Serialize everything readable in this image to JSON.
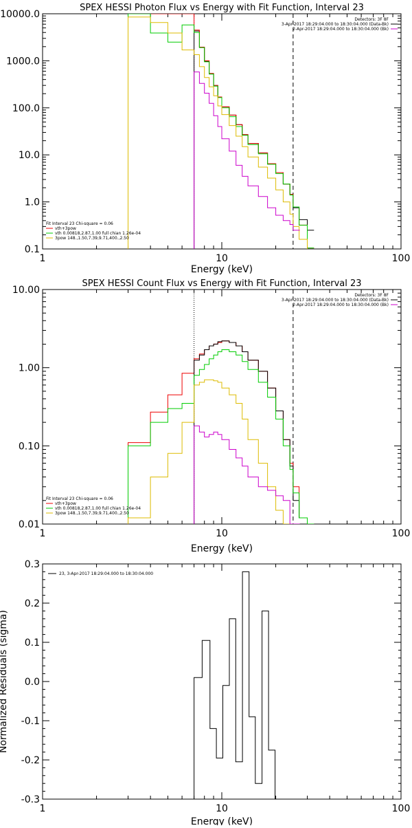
{
  "chart_data": [
    {
      "type": "line",
      "title": "SPEX HESSI Photon Flux vs Energy with Fit Function, Interval 23",
      "xlabel": "Energy (keV)",
      "ylabel": "",
      "xscale": "log",
      "yscale": "log",
      "xlim": [
        1,
        100
      ],
      "ylim": [
        0.1,
        10000
      ],
      "x_ticks": [
        "1",
        "10",
        "100"
      ],
      "y_ticks": [
        "0.1",
        "1.0",
        "10.0",
        "100.0",
        "1000.0",
        "10000.0"
      ],
      "vlines": [
        {
          "x": 7.0,
          "style": "dotted",
          "color": "#cc00cc"
        },
        {
          "x": 25.0,
          "style": "dashed",
          "color": "#000000"
        }
      ],
      "legend_top": {
        "lines": [
          "Detectors: 3F 8F",
          "3-Apr-2017 18:29:04.000 to 18:30:04.000 (Data-Bk)",
          "2-Apr-2017 18:29:04.000 to 18:30:04.000 (Bk)"
        ],
        "colors": [
          "",
          "#000000",
          "#cc00cc"
        ]
      },
      "legend_bottom": {
        "lines": [
          "Fit Interval 23   Chi-square = 0.06",
          "vth+3pow",
          "vth 0.00818,2.87,1.00  full chian 1.26e-04",
          "3pow 148.,1.50,7.39,9.71,400.,2.50"
        ],
        "colors": [
          "",
          "#ee0000",
          "#00cc00",
          "#ddbb00"
        ]
      },
      "series": [
        {
          "color": "#000000",
          "values": [
            [
              7.0,
              4300
            ],
            [
              7.5,
              1950
            ],
            [
              8.0,
              980
            ],
            [
              8.5,
              530
            ],
            [
              9.0,
              300
            ],
            [
              9.5,
              170
            ],
            [
              10.0,
              105
            ],
            [
              11.0,
              70
            ],
            [
              12.0,
              44
            ],
            [
              13.0,
              27
            ],
            [
              14.0,
              17.5
            ],
            [
              16.0,
              11
            ],
            [
              18.0,
              6.5
            ],
            [
              20.0,
              4.2
            ],
            [
              22.0,
              2.4
            ],
            [
              24.0,
              1.45
            ],
            [
              25.0,
              0.75
            ],
            [
              27.0,
              0.42
            ],
            [
              30.0,
              0.25
            ]
          ]
        },
        {
          "color": "#ee0000",
          "values": [
            [
              3.0,
              10000
            ],
            [
              4.0,
              10000
            ],
            [
              5.0,
              10000
            ],
            [
              6.0,
              10000
            ],
            [
              7.0,
              4500
            ],
            [
              7.5,
              1950
            ],
            [
              8.0,
              1000
            ],
            [
              8.5,
              540
            ],
            [
              9.0,
              300
            ],
            [
              9.5,
              170
            ],
            [
              10.0,
              105
            ],
            [
              11.0,
              70
            ],
            [
              12.0,
              44
            ],
            [
              13.0,
              27
            ],
            [
              14.0,
              17.5
            ],
            [
              16.0,
              11
            ],
            [
              18.0,
              6.5
            ],
            [
              20.0,
              4.2
            ],
            [
              22.0,
              2.4
            ],
            [
              24.0,
              1.45
            ],
            [
              25.0,
              0.78
            ],
            [
              27.0,
              0.32
            ],
            [
              30.0,
              0.105
            ]
          ]
        },
        {
          "color": "#00cc00",
          "values": [
            [
              3.0,
              10000
            ],
            [
              4.0,
              3900
            ],
            [
              5.0,
              2500
            ],
            [
              6.0,
              5800
            ],
            [
              7.0,
              4000
            ],
            [
              7.5,
              1900
            ],
            [
              8.0,
              950
            ],
            [
              8.5,
              520
            ],
            [
              9.0,
              290
            ],
            [
              9.5,
              165
            ],
            [
              10.0,
              100
            ],
            [
              11.0,
              65
            ],
            [
              12.0,
              40
            ],
            [
              13.0,
              26
            ],
            [
              14.0,
              16.5
            ],
            [
              16.0,
              10.5
            ],
            [
              18.0,
              6.3
            ],
            [
              20.0,
              4.0
            ],
            [
              22.0,
              2.4
            ],
            [
              24.0,
              1.4
            ],
            [
              25.0,
              0.78
            ],
            [
              27.0,
              0.32
            ],
            [
              30.0,
              0.105
            ]
          ]
        },
        {
          "color": "#ddbb00",
          "values": [
            [
              3.0,
              8500
            ],
            [
              4.0,
              6500
            ],
            [
              5.0,
              3900
            ],
            [
              6.0,
              1700
            ],
            [
              7.0,
              1350
            ],
            [
              7.5,
              750
            ],
            [
              8.0,
              440
            ],
            [
              8.5,
              280
            ],
            [
              9.0,
              180
            ],
            [
              9.5,
              110
            ],
            [
              10.0,
              72
            ],
            [
              11.0,
              42
            ],
            [
              12.0,
              25
            ],
            [
              13.0,
              15
            ],
            [
              14.0,
              9.0
            ],
            [
              16.0,
              5.5
            ],
            [
              18.0,
              3.2
            ],
            [
              20.0,
              1.8
            ],
            [
              22.0,
              1.0
            ],
            [
              24.0,
              0.55
            ],
            [
              25.0,
              0.3
            ],
            [
              27.0,
              0.16
            ],
            [
              30.0,
              0.09
            ]
          ]
        },
        {
          "color": "#cc00cc",
          "values": [
            [
              7.0,
              580
            ],
            [
              7.5,
              330
            ],
            [
              8.0,
              205
            ],
            [
              8.5,
              125
            ],
            [
              9.0,
              68
            ],
            [
              9.5,
              40
            ],
            [
              10.0,
              22
            ],
            [
              11.0,
              12
            ],
            [
              12.0,
              6.0
            ],
            [
              13.0,
              3.5
            ],
            [
              14.0,
              2.2
            ],
            [
              16.0,
              1.3
            ],
            [
              18.0,
              0.75
            ],
            [
              20.0,
              0.52
            ],
            [
              22.0,
              0.4
            ],
            [
              24.0,
              0.33
            ],
            [
              25.0,
              0.25
            ]
          ]
        }
      ]
    },
    {
      "type": "line",
      "title": "SPEX HESSI Count Flux vs Energy with Fit Function, Interval 23",
      "xlabel": "Energy (keV)",
      "ylabel": "",
      "xscale": "log",
      "yscale": "log",
      "xlim": [
        1,
        100
      ],
      "ylim": [
        0.01,
        10
      ],
      "x_ticks": [
        "1",
        "10",
        "100"
      ],
      "y_ticks": [
        "0.01",
        "0.10",
        "1.00",
        "10.00"
      ],
      "vlines": [
        {
          "x": 7.0,
          "style": "dotted",
          "color": "#000000"
        },
        {
          "x": 25.0,
          "style": "dashed",
          "color": "#000000"
        }
      ],
      "legend_top": {
        "lines": [
          "Detectors: 3F 8F",
          "3-Apr-2017 18:29:04.000 to 18:30:04.000 (Data-Bk)",
          "2-Apr-2017 18:29:04.000 to 18:30:04.000 (Bk)"
        ],
        "colors": [
          "",
          "#000000",
          "#cc00cc"
        ]
      },
      "legend_bottom": {
        "lines": [
          "Fit Interval 23   Chi-square = 0.06",
          "vth+3pow",
          "vth 0.00818,2.87,1.00  full chian 1.26e-04",
          "3pow 148.,1.50,7.39,9.71,400.,2.50"
        ],
        "colors": [
          "",
          "#ee0000",
          "#00cc00",
          "#ddbb00"
        ]
      },
      "series": [
        {
          "color": "#ee0000",
          "values": [
            [
              3.0,
              0.11
            ],
            [
              4.0,
              0.27
            ],
            [
              5.0,
              0.45
            ],
            [
              6.0,
              0.85
            ],
            [
              7.0,
              1.3
            ],
            [
              7.5,
              1.5
            ],
            [
              8.0,
              1.7
            ],
            [
              8.5,
              1.9
            ],
            [
              9.0,
              2.0
            ],
            [
              9.5,
              2.1
            ],
            [
              10.0,
              2.2
            ],
            [
              11.0,
              2.1
            ],
            [
              12.0,
              1.9
            ],
            [
              13.0,
              1.6
            ],
            [
              14.0,
              1.25
            ],
            [
              16.0,
              0.9
            ],
            [
              18.0,
              0.55
            ],
            [
              20.0,
              0.28
            ],
            [
              22.0,
              0.12
            ],
            [
              24.0,
              0.06
            ],
            [
              25.0,
              0.03
            ],
            [
              27.0,
              0.012
            ],
            [
              30.0,
              0.01
            ]
          ]
        },
        {
          "color": "#000000",
          "values": [
            [
              7.0,
              1.25
            ],
            [
              7.5,
              1.45
            ],
            [
              8.0,
              1.7
            ],
            [
              8.5,
              1.9
            ],
            [
              9.0,
              2.0
            ],
            [
              9.5,
              2.15
            ],
            [
              10.0,
              2.2
            ],
            [
              11.0,
              2.1
            ],
            [
              12.0,
              1.9
            ],
            [
              13.0,
              1.6
            ],
            [
              14.0,
              1.25
            ],
            [
              16.0,
              0.9
            ],
            [
              18.0,
              0.55
            ],
            [
              20.0,
              0.28
            ],
            [
              22.0,
              0.12
            ],
            [
              24.0,
              0.055
            ],
            [
              25.0,
              0.02
            ],
            [
              27.0,
              0.012
            ],
            [
              30.0,
              0.01
            ]
          ]
        },
        {
          "color": "#00cc00",
          "values": [
            [
              3.0,
              0.1
            ],
            [
              4.0,
              0.2
            ],
            [
              5.0,
              0.3
            ],
            [
              6.0,
              0.35
            ],
            [
              7.0,
              0.8
            ],
            [
              7.5,
              0.95
            ],
            [
              8.0,
              1.1
            ],
            [
              8.5,
              1.3
            ],
            [
              9.0,
              1.45
            ],
            [
              9.5,
              1.6
            ],
            [
              10.0,
              1.7
            ],
            [
              11.0,
              1.6
            ],
            [
              12.0,
              1.45
            ],
            [
              13.0,
              1.2
            ],
            [
              14.0,
              0.95
            ],
            [
              16.0,
              0.65
            ],
            [
              18.0,
              0.42
            ],
            [
              20.0,
              0.22
            ],
            [
              22.0,
              0.1
            ],
            [
              24.0,
              0.05
            ],
            [
              25.0,
              0.025
            ],
            [
              27.0,
              0.012
            ],
            [
              30.0,
              0.01
            ]
          ]
        },
        {
          "color": "#ddbb00",
          "values": [
            [
              3.0,
              0.012
            ],
            [
              4.0,
              0.04
            ],
            [
              5.0,
              0.08
            ],
            [
              6.0,
              0.2
            ],
            [
              7.0,
              0.6
            ],
            [
              7.5,
              0.65
            ],
            [
              8.0,
              0.7
            ],
            [
              8.5,
              0.7
            ],
            [
              9.0,
              0.68
            ],
            [
              9.5,
              0.65
            ],
            [
              10.0,
              0.55
            ],
            [
              11.0,
              0.45
            ],
            [
              12.0,
              0.35
            ],
            [
              13.0,
              0.22
            ],
            [
              14.0,
              0.12
            ],
            [
              16.0,
              0.06
            ],
            [
              18.0,
              0.03
            ],
            [
              20.0,
              0.015
            ],
            [
              22.0,
              0.01
            ],
            [
              24.0,
              0.01
            ]
          ]
        },
        {
          "color": "#cc00cc",
          "values": [
            [
              7.0,
              0.18
            ],
            [
              7.5,
              0.15
            ],
            [
              8.0,
              0.13
            ],
            [
              8.5,
              0.14
            ],
            [
              9.0,
              0.15
            ],
            [
              9.5,
              0.14
            ],
            [
              10.0,
              0.12
            ],
            [
              11.0,
              0.09
            ],
            [
              12.0,
              0.07
            ],
            [
              13.0,
              0.055
            ],
            [
              14.0,
              0.04
            ],
            [
              16.0,
              0.03
            ],
            [
              18.0,
              0.027
            ],
            [
              20.0,
              0.023
            ],
            [
              22.0,
              0.02
            ],
            [
              24.0,
              0.01
            ],
            [
              25.0,
              0.01
            ]
          ]
        }
      ]
    },
    {
      "type": "line",
      "title": "",
      "xlabel": "Energy (keV)",
      "ylabel": "Normalized Residuals (sigma)",
      "xscale": "log",
      "yscale": "linear",
      "xlim": [
        1,
        100
      ],
      "ylim": [
        -0.3,
        0.3
      ],
      "x_ticks": [
        "1",
        "10",
        "100"
      ],
      "y_ticks": [
        "0.3",
        "0.2",
        "0.1",
        "0.0",
        "-0.1",
        "-0.2",
        "-0.3"
      ],
      "legend": {
        "text": "23,  3-Apr-2017 18:29:04.000 to 18:30:04.000",
        "color": "#000000"
      },
      "series": [
        {
          "color": "#000000",
          "edges": [
            7.0,
            7.77,
            8.59,
            9.33,
            10.13,
            11.02,
            11.96,
            13.04,
            14.19,
            15.38,
            16.77,
            18.24,
            19.83,
            21.59,
            23.48,
            25.5
          ],
          "values": [
            0.01,
            0.105,
            -0.12,
            -0.195,
            -0.01,
            0.16,
            -0.205,
            0.28,
            -0.09,
            -0.26,
            0.18,
            -0.175,
            -0.31,
            -0.31,
            -0.31
          ]
        }
      ]
    }
  ]
}
